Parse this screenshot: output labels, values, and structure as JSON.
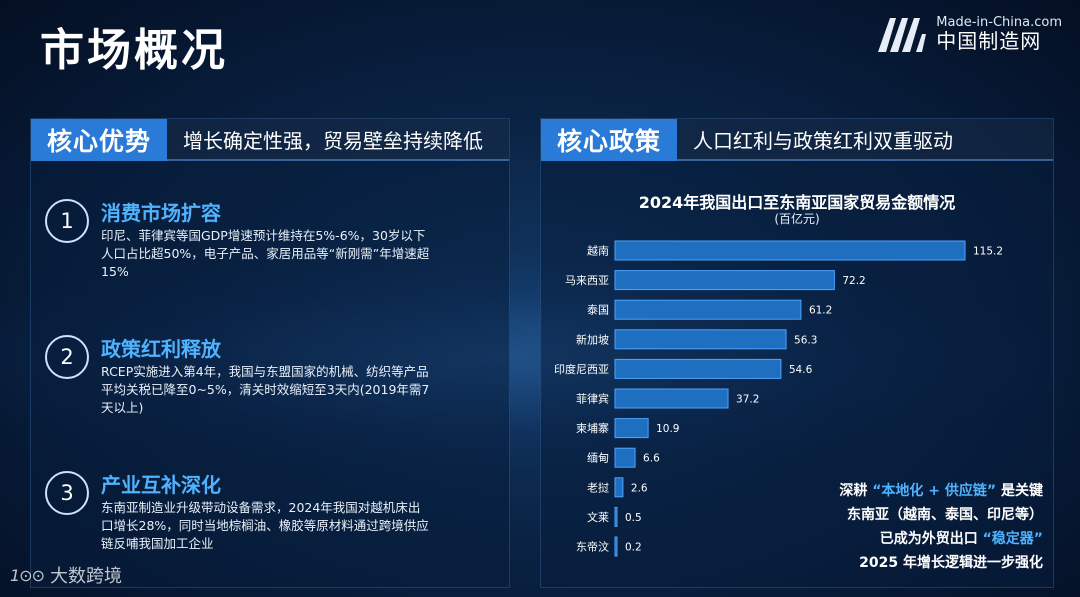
{
  "page": {
    "title": "市场概况"
  },
  "brand": {
    "en": "Made-in-China.com",
    "cn": "中国制造网"
  },
  "left": {
    "tag": "核心优势",
    "subtitle": "增长确定性强，贸易壁垒持续降低",
    "points": [
      {
        "num": "1",
        "title": "消费市场扩容",
        "body": "印尼、菲律宾等国GDP增速预计维持在5%-6%，30岁以下人口占比超50%，电子产品、家居用品等“新刚需”年增速超15%"
      },
      {
        "num": "2",
        "title": "政策红利释放",
        "body": "RCEP实施进入第4年，我国与东盟国家的机械、纺织等产品平均关税已降至0~5%，清关时效缩短至3天内(2019年需7天以上)"
      },
      {
        "num": "3",
        "title": "产业互补深化",
        "body": "东南亚制造业升级带动设备需求，2024年我国对越机床出口增长28%，同时当地棕榈油、橡胶等原材料通过跨境供应链反哺我国加工企业"
      }
    ]
  },
  "right": {
    "tag": "核心政策",
    "subtitle": "人口红利与政策红利双重驱动",
    "callout": {
      "l1_pre": "深耕 ",
      "l1_hl": "“本地化 + 供应链”",
      "l1_post": " 是关键",
      "l2": "东南亚（越南、泰国、印尼等）",
      "l3_pre": "已成为外贸出口 ",
      "l3_hl": "“稳定器”",
      "l4": "2025 年增长逻辑进一步强化"
    }
  },
  "chart_data": {
    "type": "bar",
    "orientation": "horizontal",
    "title": "2024年我国出口至东南亚国家贸易金额情况",
    "unit": "(百亿元)",
    "categories": [
      "越南",
      "马来西亚",
      "泰国",
      "新加坡",
      "印度尼西亚",
      "菲律宾",
      "柬埔寨",
      "缅甸",
      "老挝",
      "文莱",
      "东帝汶"
    ],
    "values": [
      115.2,
      72.2,
      61.2,
      56.3,
      54.6,
      37.2,
      10.9,
      6.6,
      2.6,
      0.5,
      0.2
    ],
    "xlim": [
      0,
      115.2
    ],
    "bar_color": "#1f6fc0",
    "bar_edge": "#4da3ff",
    "grid": false,
    "legend": "none"
  },
  "watermark": {
    "logo": "1⊙⊙",
    "text": "大数跨境"
  }
}
